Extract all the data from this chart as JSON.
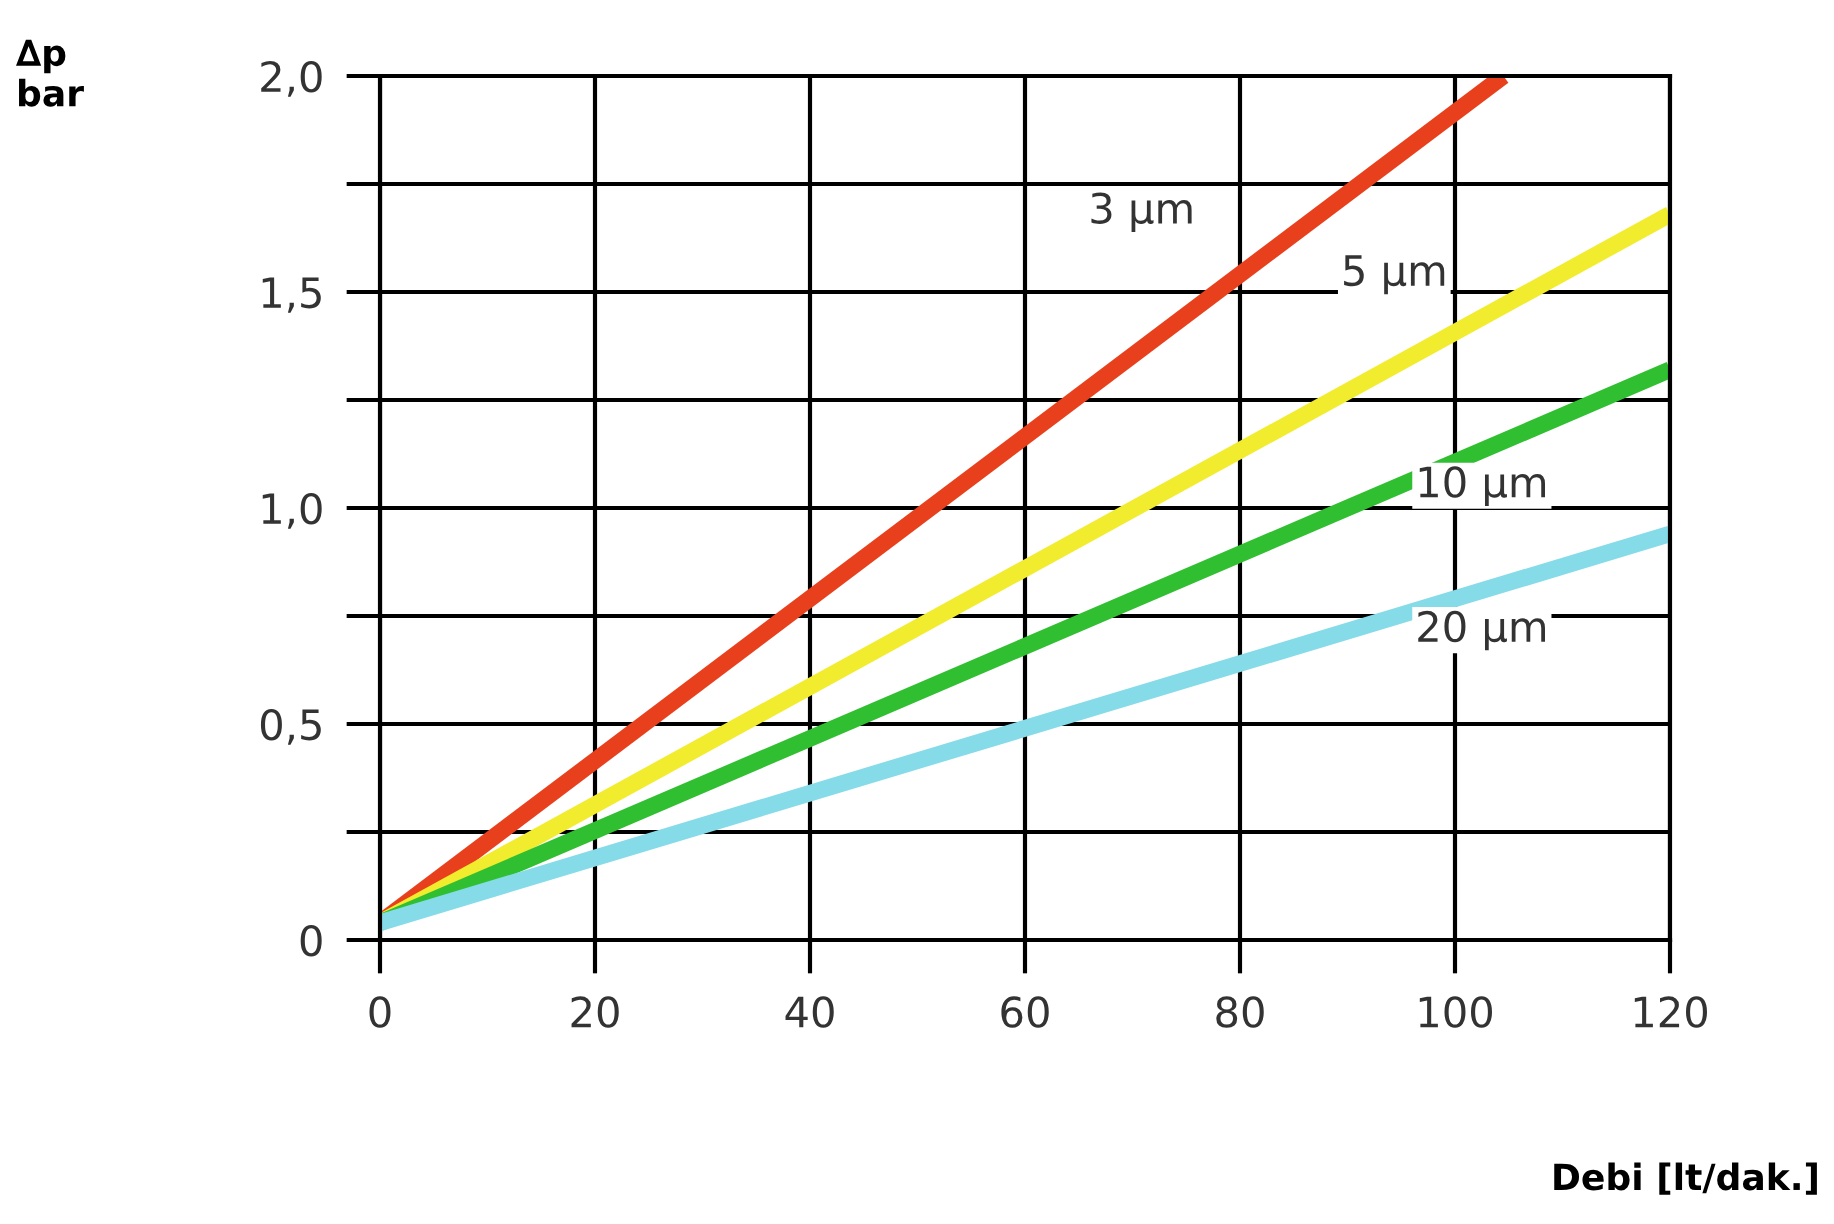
{
  "chart_data": {
    "type": "line",
    "xlabel": "Debi [lt/dak.]",
    "ylabel": "∆p\nbar",
    "xlim": [
      0,
      120
    ],
    "ylim": [
      0,
      2.0
    ],
    "xticks": [
      0,
      20,
      40,
      60,
      80,
      100,
      120
    ],
    "yticks": [
      {
        "value": 0,
        "label": "0"
      },
      {
        "value": 0.25,
        "label": null
      },
      {
        "value": 0.5,
        "label": "0,5"
      },
      {
        "value": 0.75,
        "label": null
      },
      {
        "value": 1.0,
        "label": "1,0"
      },
      {
        "value": 1.25,
        "label": null
      },
      {
        "value": 1.5,
        "label": "1,5"
      },
      {
        "value": 1.75,
        "label": null
      },
      {
        "value": 2.0,
        "label": "2,0"
      }
    ],
    "grid": true,
    "marker": "none",
    "line_style": "solid",
    "series": [
      {
        "name": "3 µm",
        "color": "#e8401c",
        "x": [
          0,
          104.5
        ],
        "values": [
          0.04,
          2.0
        ]
      },
      {
        "name": "5 µm",
        "color": "#f2ec2e",
        "x": [
          0,
          120
        ],
        "values": [
          0.04,
          1.68
        ]
      },
      {
        "name": "10 µm",
        "color": "#2fbf30",
        "x": [
          0,
          120
        ],
        "values": [
          0.04,
          1.32
        ]
      },
      {
        "name": "20 µm",
        "color": "#86dbe8",
        "x": [
          0,
          120
        ],
        "values": [
          0.04,
          0.94
        ]
      }
    ]
  }
}
